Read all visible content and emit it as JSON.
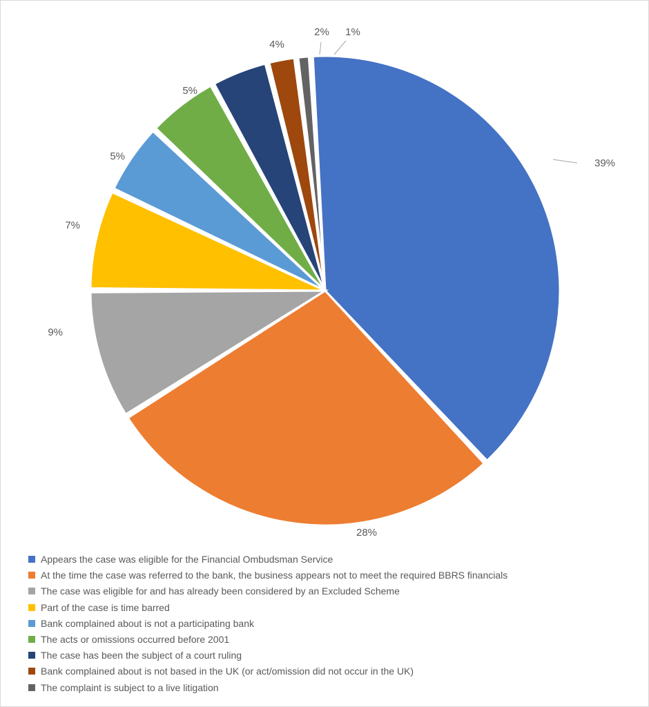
{
  "chart": {
    "type": "pie",
    "background_color": "#ffffff",
    "border_color": "#d9d9d9",
    "slice_gap_deg": 1.0,
    "label_fontsize": 15,
    "label_color": "#595959",
    "legend_fontsize": 14,
    "legend_color": "#595959",
    "series": [
      {
        "label": "Appears the case was eligible for the Financial Ombudsman Service",
        "value": 39,
        "display": "39%",
        "color": "#4472c4"
      },
      {
        "label": "At the time the case was referred to the bank, the business appears not to meet the required BBRS financials",
        "value": 28,
        "display": "28%",
        "color": "#ed7d31"
      },
      {
        "label": "The case was eligible for and has already been considered by an Excluded Scheme",
        "value": 9,
        "display": "9%",
        "color": "#a5a5a5"
      },
      {
        "label": "Part of the case is time barred",
        "value": 7,
        "display": "7%",
        "color": "#ffc000"
      },
      {
        "label": "Bank complained about is not a participating bank",
        "value": 5,
        "display": "5%",
        "color": "#5b9bd5"
      },
      {
        "label": "The acts or omissions occurred before 2001",
        "value": 5,
        "display": "5%",
        "color": "#70ad47"
      },
      {
        "label": "The case has been the subject of a court ruling",
        "value": 4,
        "display": "4%",
        "color": "#264478"
      },
      {
        "label": "Bank complained about is not based in the UK (or act/omission did not occur in the UK)",
        "value": 2,
        "display": "2%",
        "color": "#9e480e"
      },
      {
        "label": "The complaint is subject to a live litigation",
        "value": 1,
        "display": "1%",
        "color": "#636363"
      }
    ]
  }
}
